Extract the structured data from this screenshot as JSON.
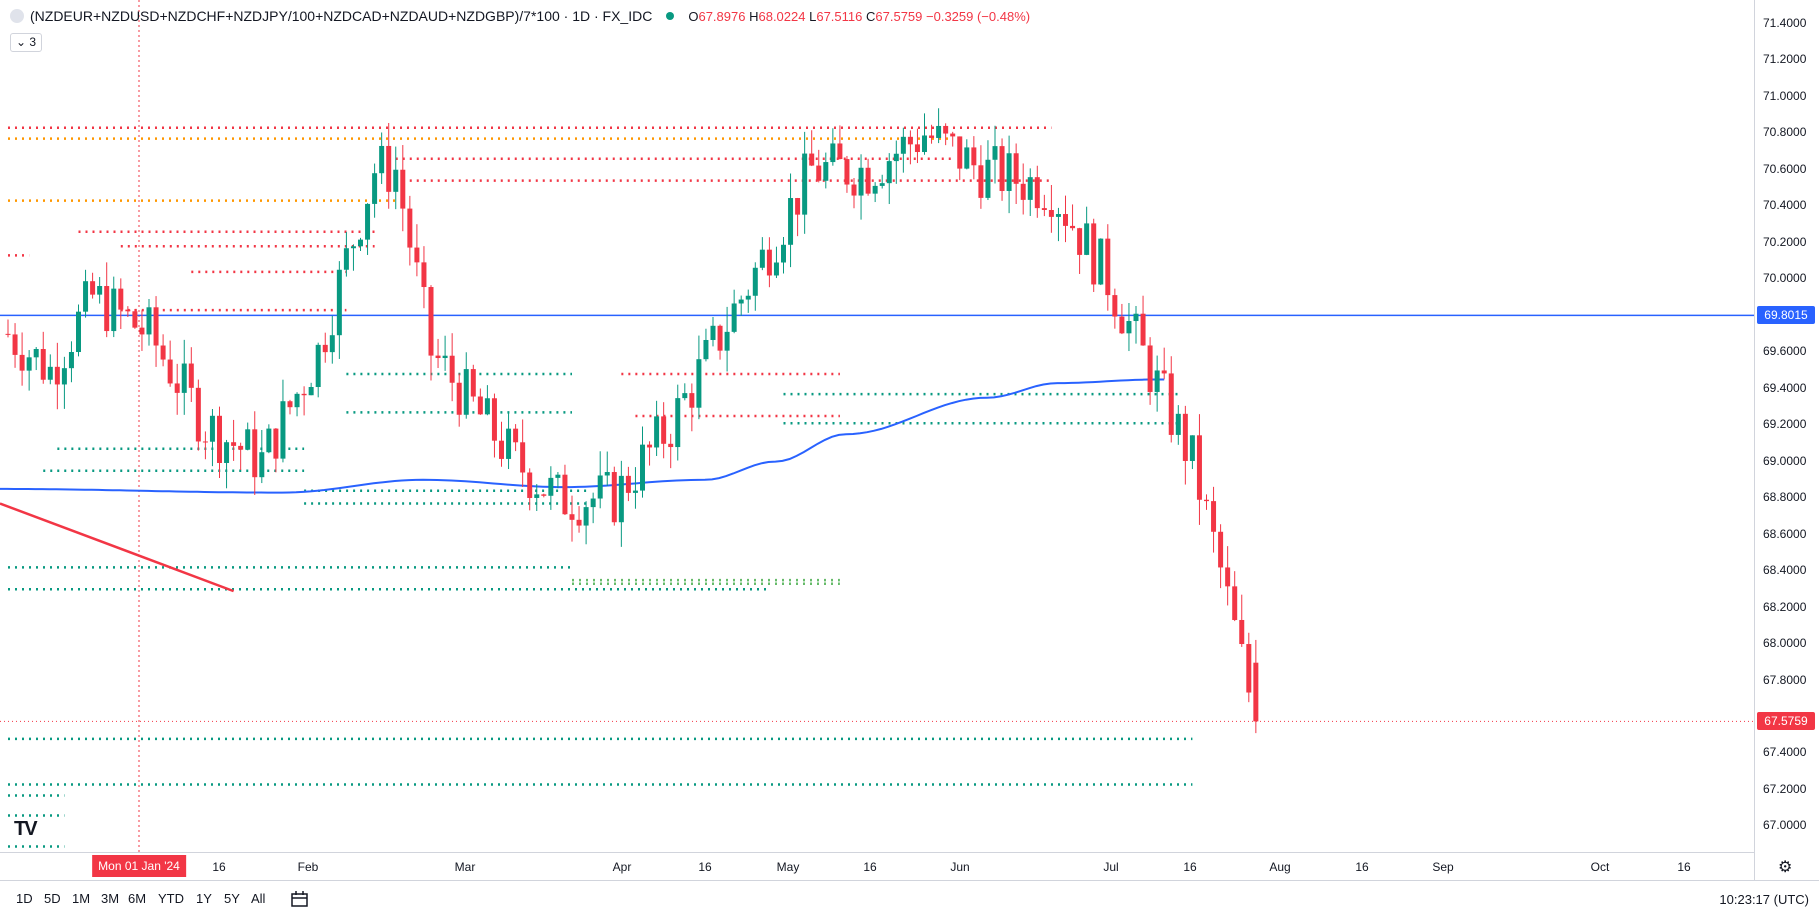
{
  "legend": {
    "symbol": "(NZDEUR+NZDUSD+NZDCHF+NZDJPY/100+NZDCAD+NZDAUD+NZDGBP)/7*100 · 1D · FX_IDC",
    "open_label": "O",
    "open": "67.8976",
    "high_label": "H",
    "high": "68.0224",
    "low_label": "L",
    "low": "67.5116",
    "close_label": "C",
    "close": "67.5759",
    "change": "−0.3259 (−0.48%)"
  },
  "indicators_count": "3",
  "price_axis": {
    "ticks": [
      "71.4000",
      "71.2000",
      "71.0000",
      "70.8000",
      "70.6000",
      "70.4000",
      "70.2000",
      "70.0000",
      "69.6000",
      "69.4000",
      "69.2000",
      "69.0000",
      "68.8000",
      "68.6000",
      "68.4000",
      "68.2000",
      "68.0000",
      "67.8000",
      "67.4000",
      "67.2000",
      "67.0000"
    ],
    "horizontal_line_label": "69.8015",
    "last_price_label": "67.5759"
  },
  "time_axis": {
    "crosshair_label": "Mon 01 Jan '24",
    "ticks": [
      "16",
      "Feb",
      "Mar",
      "Apr",
      "16",
      "May",
      "16",
      "Jun",
      "Jul",
      "16",
      "Aug",
      "16",
      "Sep",
      "Oct",
      "16"
    ]
  },
  "bottom_bar": {
    "ranges": [
      "1D",
      "5D",
      "1M",
      "3M",
      "6M",
      "YTD",
      "1Y",
      "5Y",
      "All"
    ],
    "clock": "10:23:17 (UTC)"
  },
  "colors": {
    "up": "#089981",
    "down": "#f23645",
    "ma": "#2962ff",
    "level_green": "#089981",
    "level_red": "#f23645",
    "level_orange": "#ff9800",
    "hline": "#2962ff"
  },
  "chart_data": {
    "type": "candlestick",
    "title": "(NZDEUR+NZDUSD+NZDCHF+NZDJPY/100+NZDCAD+NZDAUD+NZDGBP)/7*100",
    "interval": "1D",
    "ylim": [
      66.86,
      71.53
    ],
    "last": 67.5759,
    "ohlc_last": {
      "open": 67.8976,
      "high": 68.0224,
      "low": 67.5116,
      "close": 67.5759
    },
    "waypoints": [
      [
        0,
        69.7
      ],
      [
        6,
        69.5
      ],
      [
        12,
        69.9
      ],
      [
        20,
        69.7
      ],
      [
        28,
        69.2
      ],
      [
        36,
        69.0
      ],
      [
        44,
        69.6
      ],
      [
        52,
        70.6
      ],
      [
        55,
        70.6
      ],
      [
        60,
        69.6
      ],
      [
        72,
        69.0
      ],
      [
        78,
        68.8
      ],
      [
        86,
        68.8
      ],
      [
        94,
        69.2
      ],
      [
        104,
        69.9
      ],
      [
        114,
        70.6
      ],
      [
        122,
        70.6
      ],
      [
        130,
        70.8
      ],
      [
        138,
        70.6
      ],
      [
        148,
        70.5
      ],
      [
        156,
        70.0
      ],
      [
        162,
        69.5
      ],
      [
        168,
        69.0
      ],
      [
        172,
        68.4
      ],
      [
        177,
        67.58
      ]
    ],
    "moving_average": [
      [
        0,
        68.85
      ],
      [
        40,
        68.83
      ],
      [
        60,
        68.9
      ],
      [
        80,
        68.86
      ],
      [
        100,
        68.9
      ],
      [
        110,
        69.0
      ],
      [
        120,
        69.15
      ],
      [
        140,
        69.35
      ],
      [
        150,
        69.43
      ],
      [
        164,
        69.45
      ]
    ],
    "horizontal_line": 69.8015,
    "trend_line": {
      "from": [
        0,
        68.77
      ],
      "to": [
        32,
        68.29
      ]
    },
    "levels": [
      {
        "price": 70.83,
        "from": 0,
        "to": 148,
        "color": "red"
      },
      {
        "price": 70.77,
        "from": 0,
        "to": 134,
        "color": "orange"
      },
      {
        "price": 70.66,
        "from": 55,
        "to": 134,
        "color": "red"
      },
      {
        "price": 70.54,
        "from": 55,
        "to": 148,
        "color": "red"
      },
      {
        "price": 70.43,
        "from": 0,
        "to": 55,
        "color": "orange"
      },
      {
        "price": 70.26,
        "from": 10,
        "to": 52,
        "color": "red"
      },
      {
        "price": 70.18,
        "from": 16,
        "to": 52,
        "color": "red"
      },
      {
        "price": 70.13,
        "from": 0,
        "to": 3,
        "color": "red"
      },
      {
        "price": 70.04,
        "from": 26,
        "to": 48,
        "color": "red"
      },
      {
        "price": 69.83,
        "from": 16,
        "to": 48,
        "color": "red"
      },
      {
        "price": 69.48,
        "from": 48,
        "to": 80,
        "color": "green"
      },
      {
        "price": 69.48,
        "from": 87,
        "to": 118,
        "color": "red"
      },
      {
        "price": 69.37,
        "from": 110,
        "to": 166,
        "color": "green"
      },
      {
        "price": 69.27,
        "from": 48,
        "to": 80,
        "color": "green"
      },
      {
        "price": 69.25,
        "from": 89,
        "to": 118,
        "color": "red"
      },
      {
        "price": 69.21,
        "from": 110,
        "to": 166,
        "color": "green"
      },
      {
        "price": 69.07,
        "from": 7,
        "to": 42,
        "color": "green"
      },
      {
        "price": 68.95,
        "from": 5,
        "to": 42,
        "color": "green"
      },
      {
        "price": 68.84,
        "from": 42,
        "to": 82,
        "color": "green"
      },
      {
        "price": 68.77,
        "from": 42,
        "to": 82,
        "color": "green"
      },
      {
        "price": 68.42,
        "from": 0,
        "to": 80,
        "color": "green"
      },
      {
        "price": 68.35,
        "from": 80,
        "to": 118,
        "color": "lightgreen"
      },
      {
        "price": 68.33,
        "from": 80,
        "to": 118,
        "color": "lightgreen"
      },
      {
        "price": 68.3,
        "from": 0,
        "to": 108,
        "color": "green"
      },
      {
        "price": 67.48,
        "from": 0,
        "to": 168,
        "color": "green"
      },
      {
        "price": 67.23,
        "from": 0,
        "to": 168,
        "color": "green"
      },
      {
        "price": 67.17,
        "from": 0,
        "to": 8,
        "color": "green"
      },
      {
        "price": 67.06,
        "from": 0,
        "to": 8,
        "color": "green"
      },
      {
        "price": 66.89,
        "from": 0,
        "to": 8,
        "color": "green"
      }
    ]
  }
}
